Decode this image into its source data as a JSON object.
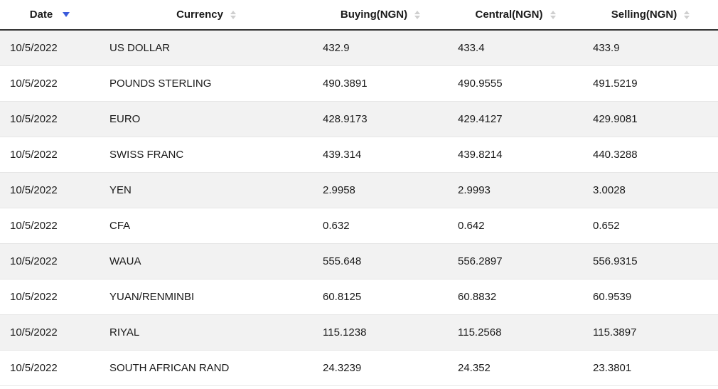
{
  "table": {
    "headers": {
      "date": "Date",
      "currency": "Currency",
      "buying": "Buying(NGN)",
      "central": "Central(NGN)",
      "selling": "Selling(NGN)"
    },
    "sort": {
      "column": "date",
      "direction": "desc",
      "active_color": "#3b5bdb",
      "inactive_color": "#cfcfcf"
    },
    "stripe_color": "#f2f2f2",
    "border_color": "#e6e6e6",
    "header_border_color": "#333333",
    "font_size": 15,
    "rows": [
      {
        "date": "10/5/2022",
        "currency": "US DOLLAR",
        "buying": "432.9",
        "central": "433.4",
        "selling": "433.9"
      },
      {
        "date": "10/5/2022",
        "currency": "POUNDS STERLING",
        "buying": "490.3891",
        "central": "490.9555",
        "selling": "491.5219"
      },
      {
        "date": "10/5/2022",
        "currency": "EURO",
        "buying": "428.9173",
        "central": "429.4127",
        "selling": "429.9081"
      },
      {
        "date": "10/5/2022",
        "currency": "SWISS FRANC",
        "buying": "439.314",
        "central": "439.8214",
        "selling": "440.3288"
      },
      {
        "date": "10/5/2022",
        "currency": "YEN",
        "buying": "2.9958",
        "central": "2.9993",
        "selling": "3.0028"
      },
      {
        "date": "10/5/2022",
        "currency": "CFA",
        "buying": "0.632",
        "central": "0.642",
        "selling": "0.652"
      },
      {
        "date": "10/5/2022",
        "currency": "WAUA",
        "buying": "555.648",
        "central": "556.2897",
        "selling": "556.9315"
      },
      {
        "date": "10/5/2022",
        "currency": "YUAN/RENMINBI",
        "buying": "60.8125",
        "central": "60.8832",
        "selling": "60.9539"
      },
      {
        "date": "10/5/2022",
        "currency": "RIYAL",
        "buying": "115.1238",
        "central": "115.2568",
        "selling": "115.3897"
      },
      {
        "date": "10/5/2022",
        "currency": "SOUTH AFRICAN RAND",
        "buying": "24.3239",
        "central": "24.352",
        "selling": "23.3801"
      }
    ]
  }
}
